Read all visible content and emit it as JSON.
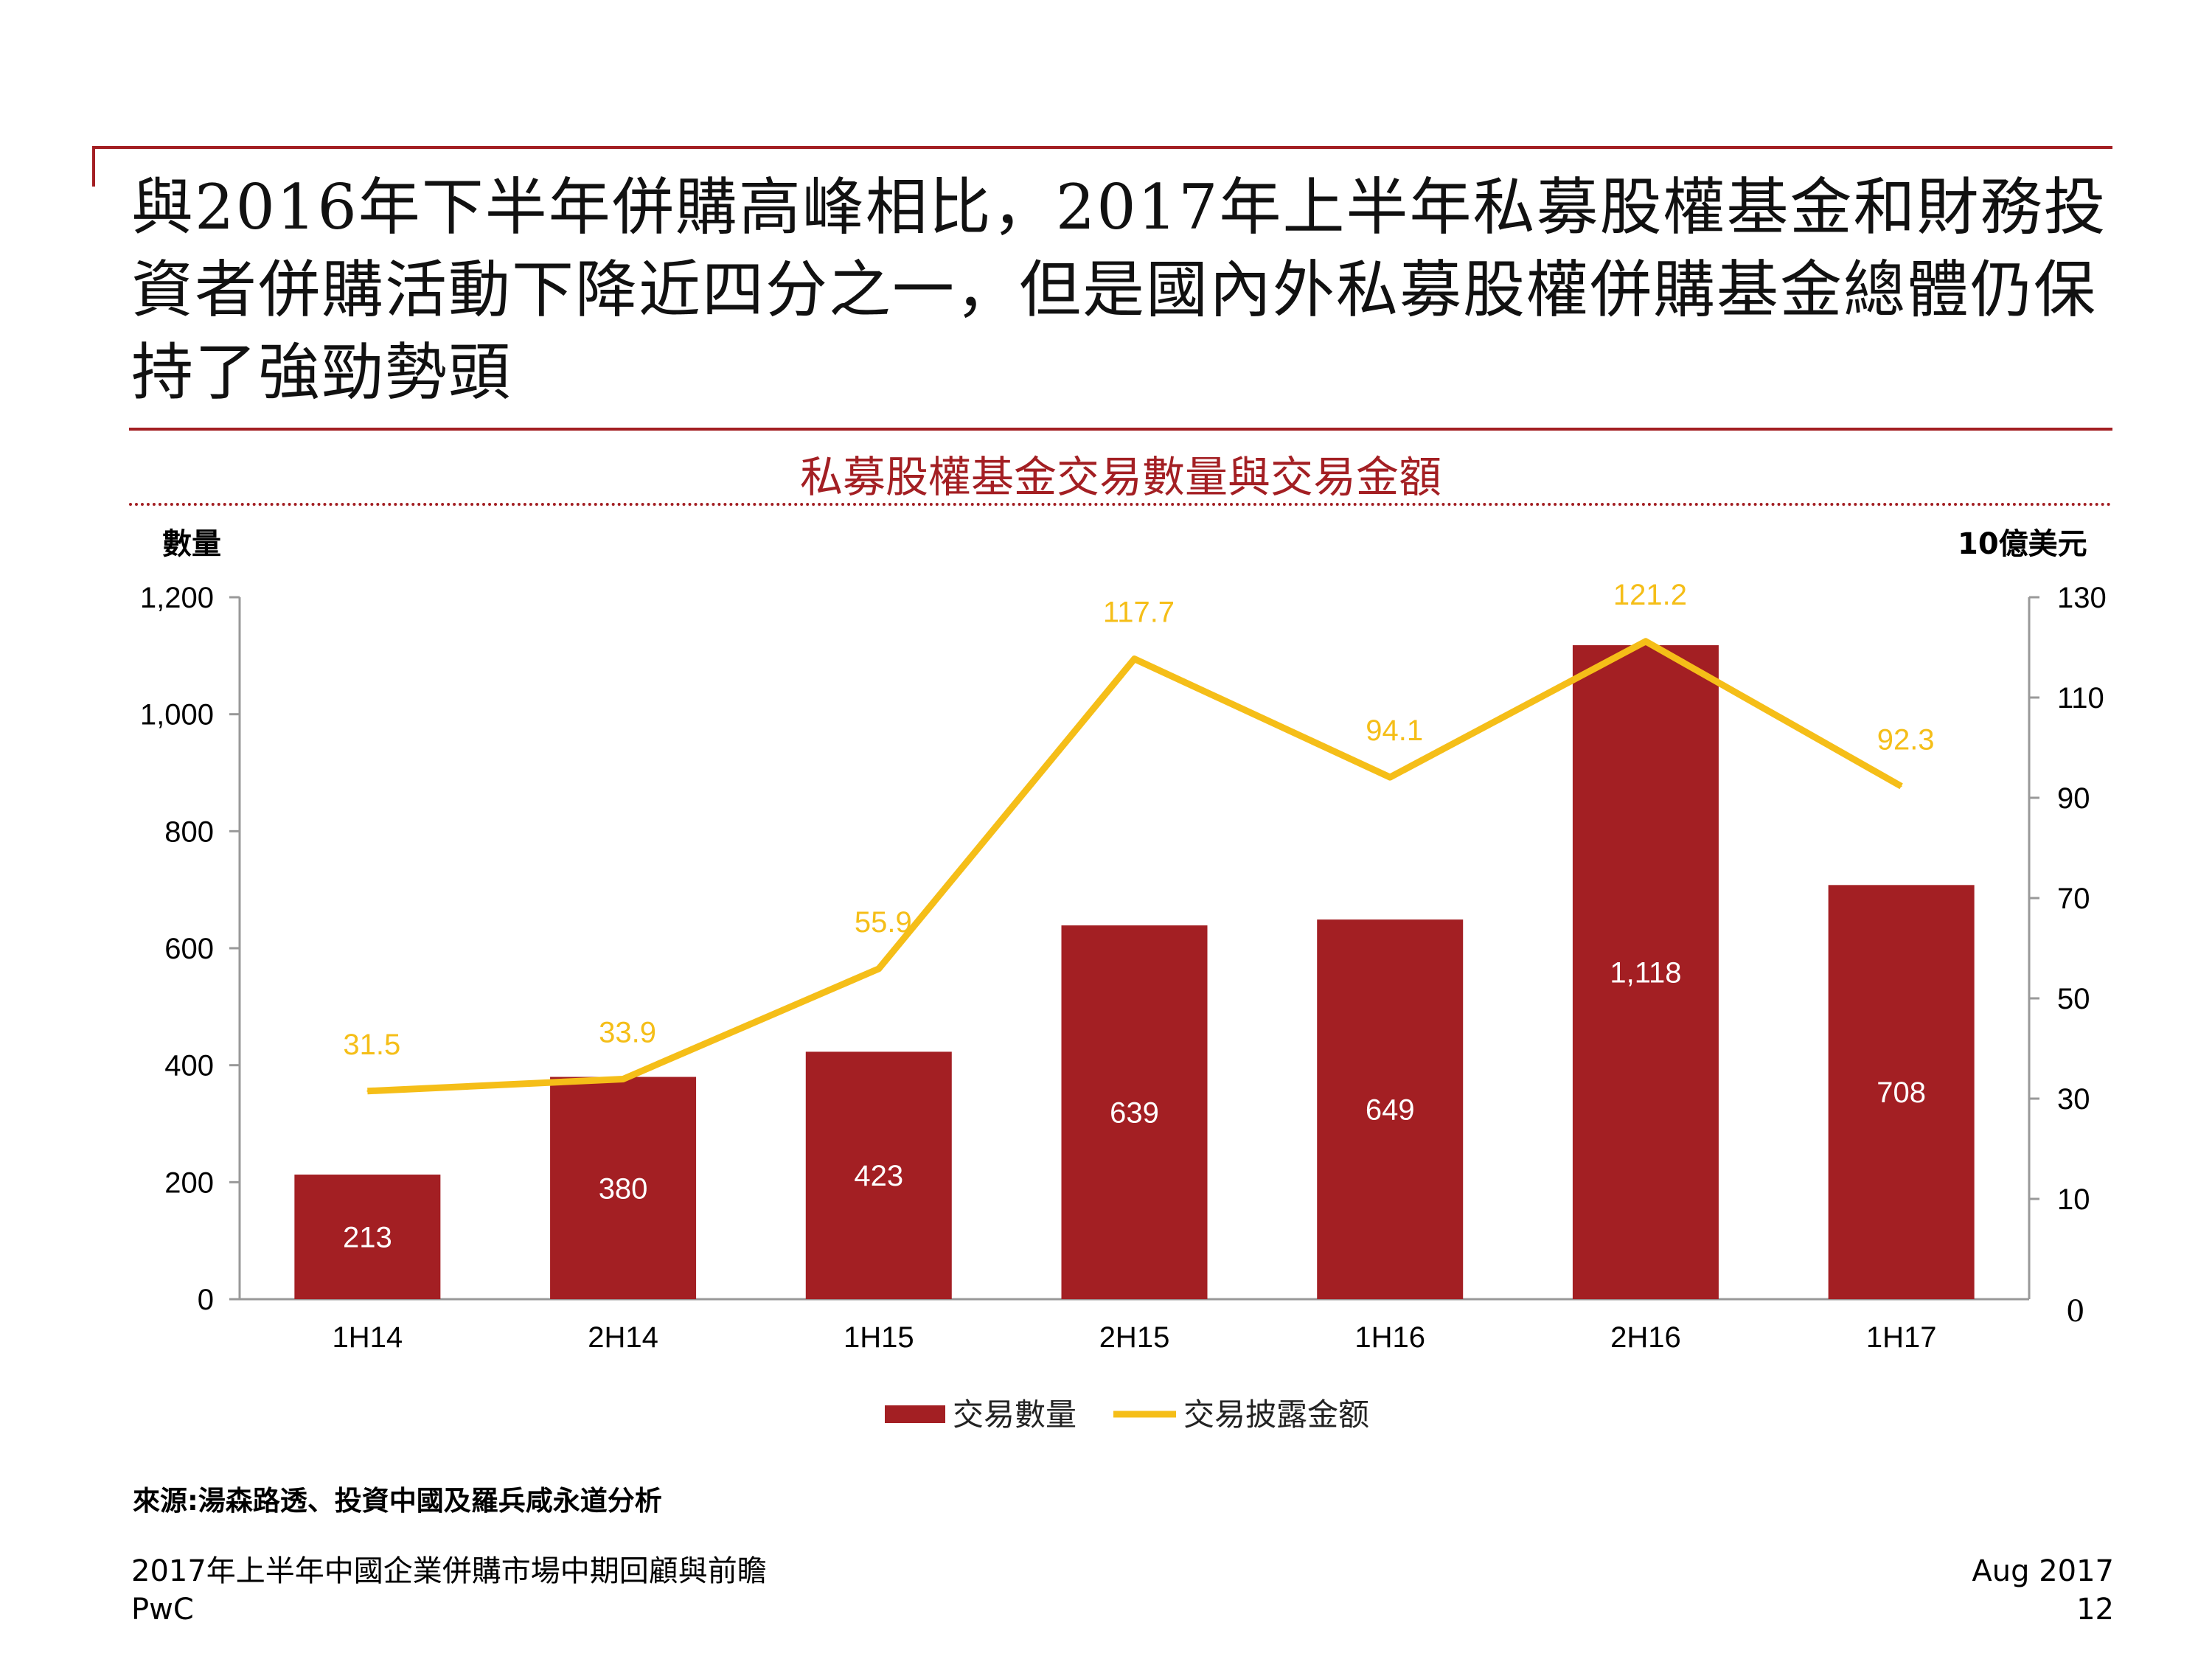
{
  "title": {
    "lines": [
      "與2016年下半年併購高峰相比，2017年上半年私募股權基金和財務投",
      "資者併購活動下降近四分之一，但是國內外私募股權併購基金總體仍保",
      "持了強勁勢頭"
    ]
  },
  "chart_data": {
    "type": "bar",
    "title": "私募股權基金交易數量與交易金額",
    "categories": [
      "1H14",
      "2H14",
      "1H15",
      "2H15",
      "1H16",
      "2H16",
      "1H17"
    ],
    "series": [
      {
        "name": "交易數量",
        "type": "bar",
        "axis": "left",
        "values": [
          213,
          380,
          423,
          639,
          649,
          1118,
          708
        ],
        "labels": [
          "213",
          "380",
          "423",
          "639",
          "649",
          "1,118",
          "708"
        ]
      },
      {
        "name": "交易披露金额",
        "type": "line",
        "axis": "right",
        "values": [
          31.5,
          33.9,
          55.9,
          117.7,
          94.1,
          121.2,
          92.3
        ],
        "labels": [
          "31.5",
          "33.9",
          "55.9",
          "117.7",
          "94.1",
          "121.2",
          "92.3"
        ]
      }
    ],
    "left_axis": {
      "label": "數量",
      "ylim": [
        0,
        1200
      ],
      "ticks": [
        0,
        200,
        400,
        600,
        800,
        1000,
        1200
      ],
      "tick_labels": [
        "0",
        "200",
        "400",
        "600",
        "800",
        "1,000",
        "1,200"
      ]
    },
    "right_axis": {
      "label": "10億美元",
      "ylim": [
        -10,
        130
      ],
      "ticks": [
        10,
        30,
        50,
        70,
        90,
        110,
        130
      ],
      "tick_labels": [
        "10",
        "30",
        "50",
        "70",
        "90",
        "110",
        "130"
      ],
      "bottom_label": "0"
    },
    "legend": "bottom-center",
    "grid": false
  },
  "colors": {
    "bar": "#a31f23",
    "line": "#f5be18",
    "accent": "#a31f23"
  },
  "source": "來源:湯森路透、投資中國及羅兵咸永道分析",
  "footer": {
    "doc_title": "2017年上半年中國企業併購市場中期回顧與前瞻",
    "brand": "PwC",
    "date": "Aug 2017",
    "page": "12"
  }
}
